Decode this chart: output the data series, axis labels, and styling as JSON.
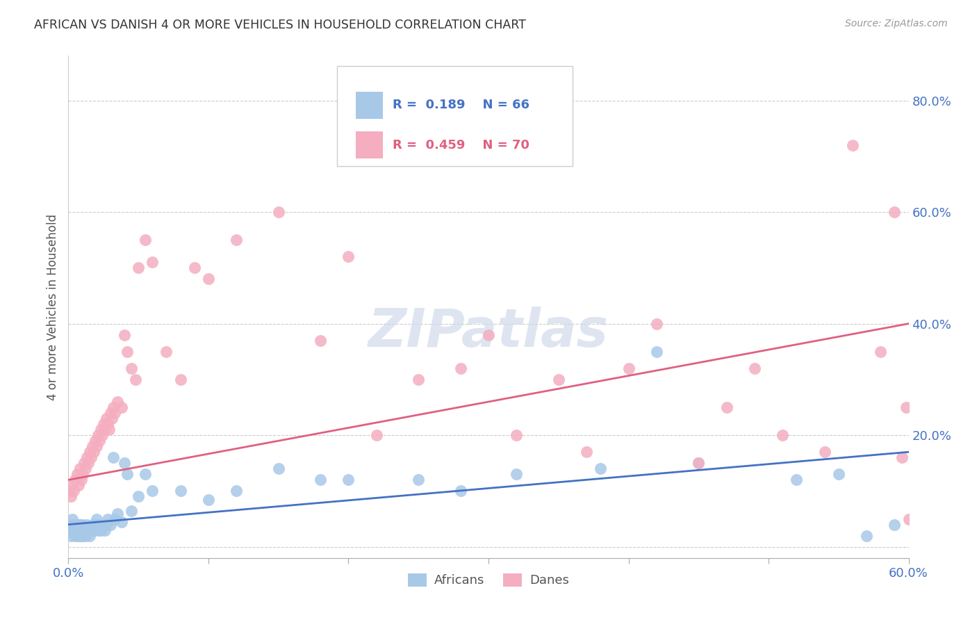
{
  "title": "AFRICAN VS DANISH 4 OR MORE VEHICLES IN HOUSEHOLD CORRELATION CHART",
  "source": "Source: ZipAtlas.com",
  "ylabel": "4 or more Vehicles in Household",
  "xlim": [
    0.0,
    0.6
  ],
  "ylim": [
    -0.02,
    0.88
  ],
  "yticks": [
    0.0,
    0.2,
    0.4,
    0.6,
    0.8
  ],
  "ytick_labels": [
    "",
    "20.0%",
    "40.0%",
    "60.0%",
    "80.0%"
  ],
  "xticks": [
    0.0,
    0.1,
    0.2,
    0.3,
    0.4,
    0.5,
    0.6
  ],
  "xtick_labels": [
    "0.0%",
    "",
    "",
    "",
    "",
    "",
    "60.0%"
  ],
  "african_color": "#a8c8e8",
  "danish_color": "#f4aec0",
  "african_line_color": "#4472c4",
  "danish_line_color": "#e06080",
  "watermark": "ZIPatlas",
  "african_x": [
    0.001,
    0.002,
    0.002,
    0.003,
    0.003,
    0.004,
    0.004,
    0.005,
    0.005,
    0.006,
    0.006,
    0.007,
    0.007,
    0.008,
    0.008,
    0.008,
    0.009,
    0.009,
    0.01,
    0.01,
    0.01,
    0.011,
    0.012,
    0.013,
    0.013,
    0.014,
    0.015,
    0.016,
    0.017,
    0.018,
    0.019,
    0.02,
    0.021,
    0.022,
    0.023,
    0.025,
    0.026,
    0.027,
    0.028,
    0.03,
    0.032,
    0.033,
    0.035,
    0.038,
    0.04,
    0.042,
    0.045,
    0.05,
    0.055,
    0.06,
    0.08,
    0.1,
    0.12,
    0.15,
    0.18,
    0.2,
    0.25,
    0.28,
    0.32,
    0.38,
    0.42,
    0.45,
    0.52,
    0.55,
    0.57,
    0.59
  ],
  "african_y": [
    0.03,
    0.04,
    0.02,
    0.03,
    0.05,
    0.03,
    0.04,
    0.02,
    0.03,
    0.04,
    0.02,
    0.03,
    0.04,
    0.03,
    0.02,
    0.04,
    0.03,
    0.02,
    0.03,
    0.04,
    0.02,
    0.03,
    0.02,
    0.03,
    0.04,
    0.03,
    0.02,
    0.03,
    0.04,
    0.03,
    0.04,
    0.05,
    0.03,
    0.04,
    0.03,
    0.04,
    0.03,
    0.04,
    0.05,
    0.04,
    0.16,
    0.05,
    0.06,
    0.045,
    0.15,
    0.13,
    0.065,
    0.09,
    0.13,
    0.1,
    0.1,
    0.085,
    0.1,
    0.14,
    0.12,
    0.12,
    0.12,
    0.1,
    0.13,
    0.14,
    0.35,
    0.15,
    0.12,
    0.13,
    0.02,
    0.04
  ],
  "danish_x": [
    0.001,
    0.002,
    0.003,
    0.004,
    0.005,
    0.006,
    0.007,
    0.008,
    0.009,
    0.01,
    0.011,
    0.012,
    0.013,
    0.014,
    0.015,
    0.016,
    0.017,
    0.018,
    0.019,
    0.02,
    0.021,
    0.022,
    0.023,
    0.024,
    0.025,
    0.026,
    0.027,
    0.028,
    0.029,
    0.03,
    0.031,
    0.032,
    0.033,
    0.035,
    0.038,
    0.04,
    0.042,
    0.045,
    0.048,
    0.05,
    0.055,
    0.06,
    0.07,
    0.08,
    0.09,
    0.1,
    0.12,
    0.15,
    0.18,
    0.2,
    0.22,
    0.25,
    0.28,
    0.3,
    0.32,
    0.35,
    0.37,
    0.4,
    0.42,
    0.45,
    0.47,
    0.49,
    0.51,
    0.54,
    0.56,
    0.58,
    0.59,
    0.595,
    0.598,
    0.6
  ],
  "danish_y": [
    0.1,
    0.09,
    0.11,
    0.1,
    0.12,
    0.13,
    0.11,
    0.14,
    0.12,
    0.13,
    0.15,
    0.14,
    0.16,
    0.15,
    0.17,
    0.16,
    0.18,
    0.17,
    0.19,
    0.18,
    0.2,
    0.19,
    0.21,
    0.2,
    0.22,
    0.21,
    0.23,
    0.22,
    0.21,
    0.24,
    0.23,
    0.25,
    0.24,
    0.26,
    0.25,
    0.38,
    0.35,
    0.32,
    0.3,
    0.5,
    0.55,
    0.51,
    0.35,
    0.3,
    0.5,
    0.48,
    0.55,
    0.6,
    0.37,
    0.52,
    0.2,
    0.3,
    0.32,
    0.38,
    0.2,
    0.3,
    0.17,
    0.32,
    0.4,
    0.15,
    0.25,
    0.32,
    0.2,
    0.17,
    0.72,
    0.35,
    0.6,
    0.16,
    0.25,
    0.05
  ],
  "african_line": [
    0.04,
    0.17
  ],
  "danish_line": [
    0.12,
    0.4
  ]
}
